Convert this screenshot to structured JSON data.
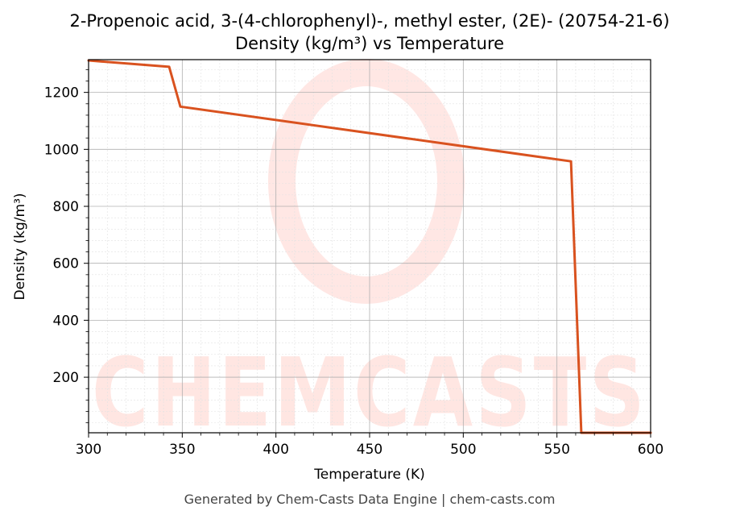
{
  "chart_data": {
    "type": "line",
    "title": "2-Propenoic acid, 3-(4-chlorophenyl)-, methyl ester, (2E)- (20754-21-6)",
    "subtitle": "Density (kg/m³) vs Temperature",
    "xlabel": "Temperature (K)",
    "ylabel": "Density (kg/m³)",
    "xlim": [
      300,
      600
    ],
    "ylim": [
      5,
      1315
    ],
    "xticks": [
      300,
      350,
      400,
      450,
      500,
      550,
      600
    ],
    "yticks": [
      200,
      400,
      600,
      800,
      1000,
      1200
    ],
    "grid": true,
    "series": [
      {
        "color": "#d9521f",
        "x": [
          300,
          343,
          349,
          557.5,
          563,
          600
        ],
        "y": [
          1312,
          1290,
          1150,
          958,
          5,
          5
        ]
      }
    ]
  },
  "footer": "Generated by Chem-Casts Data Engine | chem-casts.com",
  "watermark": {
    "text": "CHEMCASTS",
    "color": "#ff3b1f"
  }
}
